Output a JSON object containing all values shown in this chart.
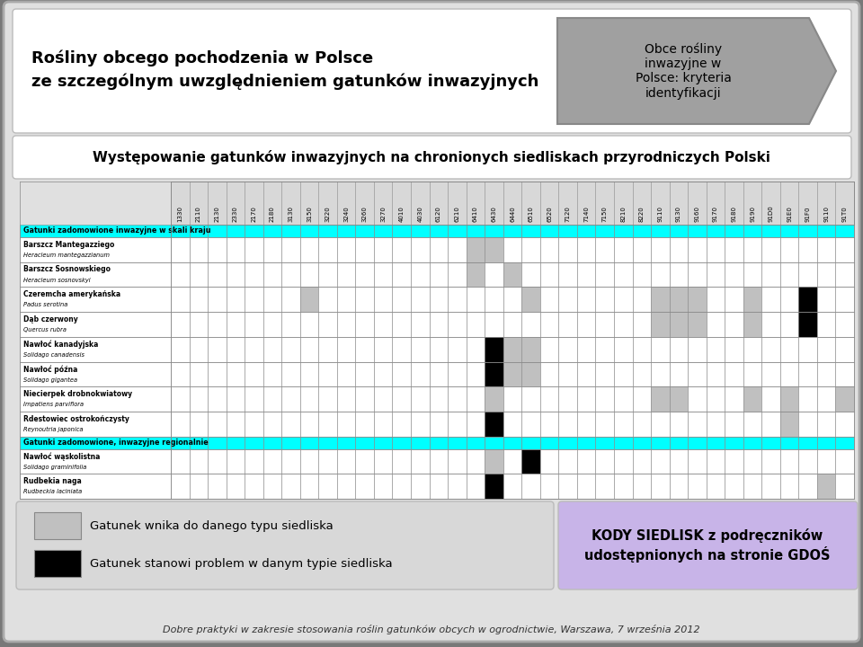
{
  "title_main_line1": "Rośliny obcego pochodzenia w Polsce",
  "title_main_line2": "ze szczególnym uwzględnieniem gatunków inwazyjnych",
  "title_box_right": "Obce rośliny\ninwazyjne w\nPolsce: kryteria\nidentyfikacji",
  "subtitle": "Występowanie gatunków inwazyjnych na chronionych siedliskach przyrodniczych Polski",
  "columns": [
    "1330",
    "2110",
    "2130",
    "2330",
    "2170",
    "2180",
    "3130",
    "3150",
    "3220",
    "3240",
    "3260",
    "3270",
    "4010",
    "4030",
    "6120",
    "6210",
    "6410",
    "6430",
    "6440",
    "6510",
    "6520",
    "7120",
    "7140",
    "7150",
    "8210",
    "8220",
    "9110",
    "9130",
    "9160",
    "9170",
    "9180",
    "9190",
    "91D0",
    "91E0",
    "91F0",
    "9110",
    "91T0"
  ],
  "rows": [
    {
      "name": "Gatunki zadomowione inwazyjne w skali kraju",
      "header": true,
      "cells": [
        1,
        1,
        1,
        1,
        1,
        1,
        1,
        1,
        1,
        1,
        1,
        1,
        1,
        1,
        1,
        1,
        1,
        1,
        1,
        1,
        1,
        1,
        1,
        1,
        1,
        1,
        1,
        1,
        1,
        1,
        1,
        1,
        1,
        1,
        1,
        1,
        1
      ]
    },
    {
      "name": "Barszcz Mantegazziego",
      "italic_part": "Heracleum mantegazzianum",
      "header": false,
      "cells": [
        0,
        0,
        0,
        0,
        0,
        0,
        0,
        0,
        0,
        0,
        0,
        0,
        0,
        0,
        0,
        0,
        2,
        2,
        0,
        0,
        0,
        0,
        0,
        0,
        0,
        0,
        0,
        0,
        0,
        0,
        0,
        0,
        0,
        0,
        0,
        0,
        0
      ]
    },
    {
      "name": "Barszcz Sosnowskiego",
      "italic_part": "Heracleum sosnovskyi",
      "header": false,
      "cells": [
        0,
        0,
        0,
        0,
        0,
        0,
        0,
        0,
        0,
        0,
        0,
        0,
        0,
        0,
        0,
        0,
        2,
        0,
        2,
        0,
        0,
        0,
        0,
        0,
        0,
        0,
        0,
        0,
        0,
        0,
        0,
        0,
        0,
        0,
        0,
        0,
        0
      ]
    },
    {
      "name": "Czeremcha amerykańska",
      "italic_part": "Padus serotina",
      "header": false,
      "cells": [
        0,
        0,
        0,
        0,
        0,
        0,
        0,
        2,
        0,
        0,
        0,
        0,
        0,
        0,
        0,
        0,
        0,
        0,
        0,
        2,
        0,
        0,
        0,
        0,
        0,
        0,
        2,
        2,
        2,
        0,
        0,
        2,
        0,
        0,
        3,
        0,
        0
      ]
    },
    {
      "name": "Dąb czerwony",
      "italic_part": "Quercus rubra",
      "header": false,
      "cells": [
        0,
        0,
        0,
        0,
        0,
        0,
        0,
        0,
        0,
        0,
        0,
        0,
        0,
        0,
        0,
        0,
        0,
        0,
        0,
        0,
        0,
        0,
        0,
        0,
        0,
        0,
        2,
        2,
        2,
        0,
        0,
        2,
        0,
        0,
        3,
        0,
        0
      ]
    },
    {
      "name": "Nawłoć kanadyjska",
      "italic_part": "Solidago canadensis",
      "header": false,
      "cells": [
        0,
        0,
        0,
        0,
        0,
        0,
        0,
        0,
        0,
        0,
        0,
        0,
        0,
        0,
        0,
        0,
        0,
        3,
        2,
        2,
        0,
        0,
        0,
        0,
        0,
        0,
        0,
        0,
        0,
        0,
        0,
        0,
        0,
        0,
        0,
        0,
        0
      ]
    },
    {
      "name": "Nawłoć późna",
      "italic_part": "Solidago gigantea",
      "header": false,
      "cells": [
        0,
        0,
        0,
        0,
        0,
        0,
        0,
        0,
        0,
        0,
        0,
        0,
        0,
        0,
        0,
        0,
        0,
        3,
        2,
        2,
        0,
        0,
        0,
        0,
        0,
        0,
        0,
        0,
        0,
        0,
        0,
        0,
        0,
        0,
        0,
        0,
        0
      ]
    },
    {
      "name": "Niecierpek drobnokwiatowy",
      "italic_part": "Impatiens parviflora",
      "header": false,
      "cells": [
        0,
        0,
        0,
        0,
        0,
        0,
        0,
        0,
        0,
        0,
        0,
        0,
        0,
        0,
        0,
        0,
        0,
        2,
        0,
        0,
        0,
        0,
        0,
        0,
        0,
        0,
        2,
        2,
        0,
        0,
        0,
        2,
        0,
        2,
        0,
        0,
        2
      ]
    },
    {
      "name": "Rdestowiec ostrokończysty",
      "italic_part": "Reynoutria japonica",
      "header": false,
      "cells": [
        0,
        0,
        0,
        0,
        0,
        0,
        0,
        0,
        0,
        0,
        0,
        0,
        0,
        0,
        0,
        0,
        0,
        3,
        0,
        0,
        0,
        0,
        0,
        0,
        0,
        0,
        0,
        0,
        0,
        0,
        0,
        0,
        0,
        2,
        0,
        0,
        0
      ]
    },
    {
      "name": "Gatunki zadomowione, inwazyjne regionalnie",
      "header": true,
      "cells": [
        1,
        1,
        1,
        1,
        1,
        1,
        1,
        1,
        1,
        1,
        1,
        1,
        1,
        1,
        1,
        1,
        1,
        1,
        1,
        1,
        1,
        1,
        1,
        1,
        1,
        1,
        1,
        1,
        1,
        1,
        1,
        1,
        1,
        1,
        1,
        1,
        1
      ]
    },
    {
      "name": "Nawłoć wąskolistna",
      "italic_part": "Solidago graminifolia",
      "header": false,
      "cells": [
        0,
        0,
        0,
        0,
        0,
        0,
        0,
        0,
        0,
        0,
        0,
        0,
        0,
        0,
        0,
        0,
        0,
        2,
        0,
        3,
        0,
        0,
        0,
        0,
        0,
        0,
        0,
        0,
        0,
        0,
        0,
        0,
        0,
        0,
        0,
        0,
        0
      ]
    },
    {
      "name": "Rudbekia naga",
      "italic_part": "Rudbeckia laciniata",
      "header": false,
      "cells": [
        0,
        0,
        0,
        0,
        0,
        0,
        0,
        0,
        0,
        0,
        0,
        0,
        0,
        0,
        0,
        0,
        0,
        3,
        0,
        0,
        0,
        0,
        0,
        0,
        0,
        0,
        0,
        0,
        0,
        0,
        0,
        0,
        0,
        0,
        0,
        2,
        0
      ]
    }
  ],
  "cell_color_map": {
    "0": "#FFFFFF",
    "1": "#00FFFF",
    "2": "#C0C0C0",
    "3": "#000000"
  },
  "footer": "Dobre praktyki w zakresie stosowania roślin gatunków obcych w ogrodnictwie, Warszawa, 7 września 2012",
  "legend_entry": "Gatunek wnika do danego typu siedliska",
  "legend_entry2": "Gatunek stanowi problem w danym typie siedliska",
  "legend_box_right": "KODY SIEDLISK z podręczników\nudostępnionych na stronie GDOŚ",
  "outer_bg": "#787878"
}
